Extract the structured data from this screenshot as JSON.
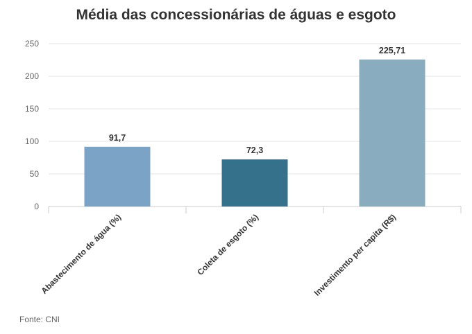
{
  "source": "Fonte: CNI",
  "chart_data": {
    "type": "bar",
    "title": "Média das concessionárias de águas e esgoto",
    "xlabel": "",
    "ylabel": "",
    "categories": [
      "Abastecimento de água (%)",
      "Coleta de esgoto (%)",
      "Investimento per capita (R$)"
    ],
    "values": [
      91.7,
      72.3,
      225.71
    ],
    "data_labels": [
      "91,7",
      "72,3",
      "225,71"
    ],
    "colors": [
      "#7ba3c5",
      "#36718c",
      "#8aacbf"
    ],
    "ylim": [
      0,
      250
    ],
    "yticks": [
      0,
      50,
      100,
      150,
      200,
      250
    ],
    "grid": true,
    "legend": "none"
  }
}
